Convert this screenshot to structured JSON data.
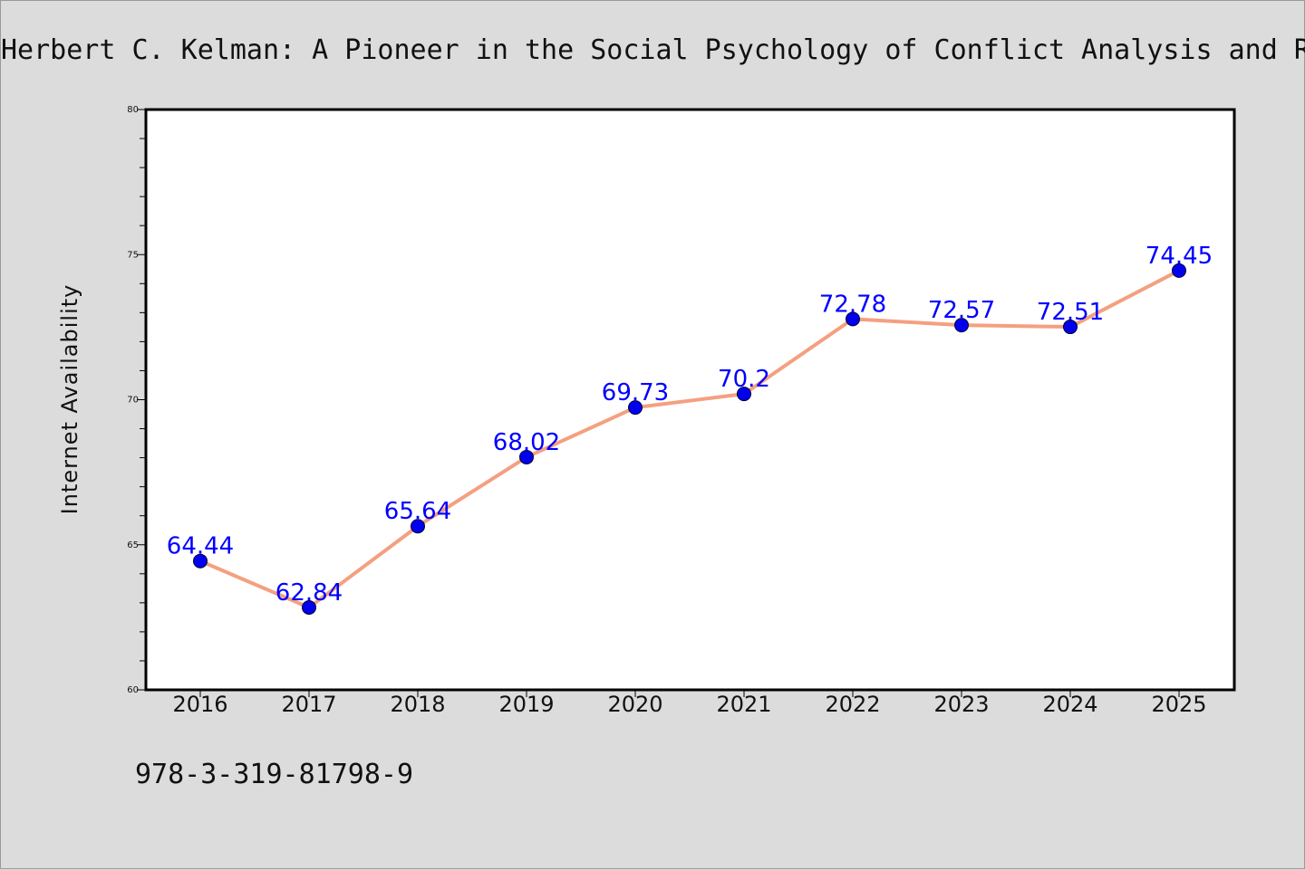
{
  "footer": {
    "isbn": "978-3-319-81798-9"
  },
  "colors": {
    "line": "#f4a080",
    "marker": "#0000ee",
    "label": "#0000ff",
    "plot_bg": "#ffffff",
    "page_bg": "#dcdcdc"
  },
  "chart_data": {
    "type": "line",
    "title": "Herbert C. Kelman: A Pioneer in the Social Psychology of Conflict Analysis and R",
    "xlabel": "",
    "ylabel": "Internet Availability",
    "categories": [
      "2016",
      "2017",
      "2018",
      "2019",
      "2020",
      "2021",
      "2022",
      "2023",
      "2024",
      "2025"
    ],
    "values": [
      64.44,
      62.84,
      65.64,
      68.02,
      69.73,
      70.2,
      72.78,
      72.57,
      72.51,
      74.45
    ],
    "data_labels": [
      "64.44",
      "62.84",
      "65.64",
      "68.02",
      "69.73",
      "70.2",
      "72.78",
      "72.57",
      "72.51",
      "74.45"
    ],
    "ylim": [
      60,
      80
    ],
    "yticks": [
      "60",
      "65",
      "70",
      "75",
      "80"
    ],
    "grid": false,
    "legend": "none"
  }
}
